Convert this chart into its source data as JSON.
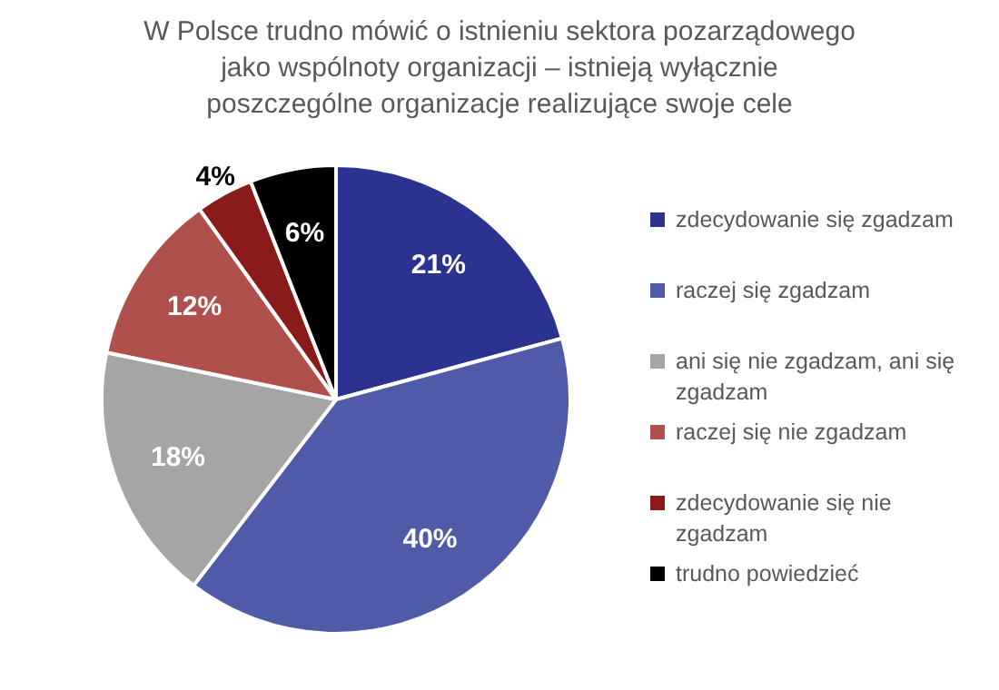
{
  "chart_data": {
    "type": "pie",
    "title": "W Polsce trudno mówić o istnieniu sektora pozarządowego jako wspólnoty organizacji – istnieją wyłącznie poszczególne organizacje realizujące swoje cele",
    "categories": [
      "zdecydowanie się zgadzam",
      "raczej się zgadzam",
      "ani się nie zgadzam, ani się zgadzam",
      "raczej się nie zgadzam",
      "zdecydowanie się nie zgadzam",
      "trudno powiedzieć"
    ],
    "values": [
      21,
      40,
      18,
      12,
      4,
      6
    ],
    "colors": [
      "#2a338f",
      "#4f5ba6",
      "#a5a5a5",
      "#b0504c",
      "#8b1a1a",
      "#000000"
    ],
    "value_labels": [
      "21%",
      "40%",
      "18%",
      "12%",
      "4%",
      "6%"
    ],
    "legend": "right"
  }
}
